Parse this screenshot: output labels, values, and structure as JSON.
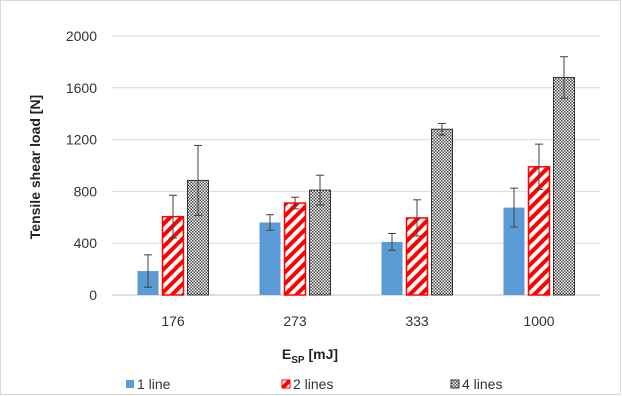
{
  "chart_data": {
    "type": "bar",
    "categories": [
      "176",
      "273",
      "333",
      "1000"
    ],
    "xlabel_main": "E",
    "xlabel_sub": "SP",
    "xlabel_unit": " [mJ]",
    "ylabel": "Tensile shear load [N]",
    "ylim": [
      0,
      2000
    ],
    "yticks": [
      0,
      400,
      800,
      1200,
      1600,
      2000
    ],
    "grid": true,
    "legend_position": "bottom",
    "series": [
      {
        "name": "1 line",
        "values": [
          185,
          560,
          410,
          675
        ],
        "errors": [
          125,
          60,
          65,
          150
        ],
        "color": "#5b9bd5",
        "pattern": "solid"
      },
      {
        "name": "2 lines",
        "values": [
          605,
          710,
          595,
          990
        ],
        "errors": [
          165,
          45,
          140,
          175
        ],
        "color": "#ff0000",
        "pattern": "diagonal-stripes"
      },
      {
        "name": "4 lines",
        "values": [
          885,
          810,
          1280,
          1680
        ],
        "errors": [
          270,
          115,
          45,
          160
        ],
        "color": "#444444",
        "pattern": "dotted"
      }
    ]
  }
}
